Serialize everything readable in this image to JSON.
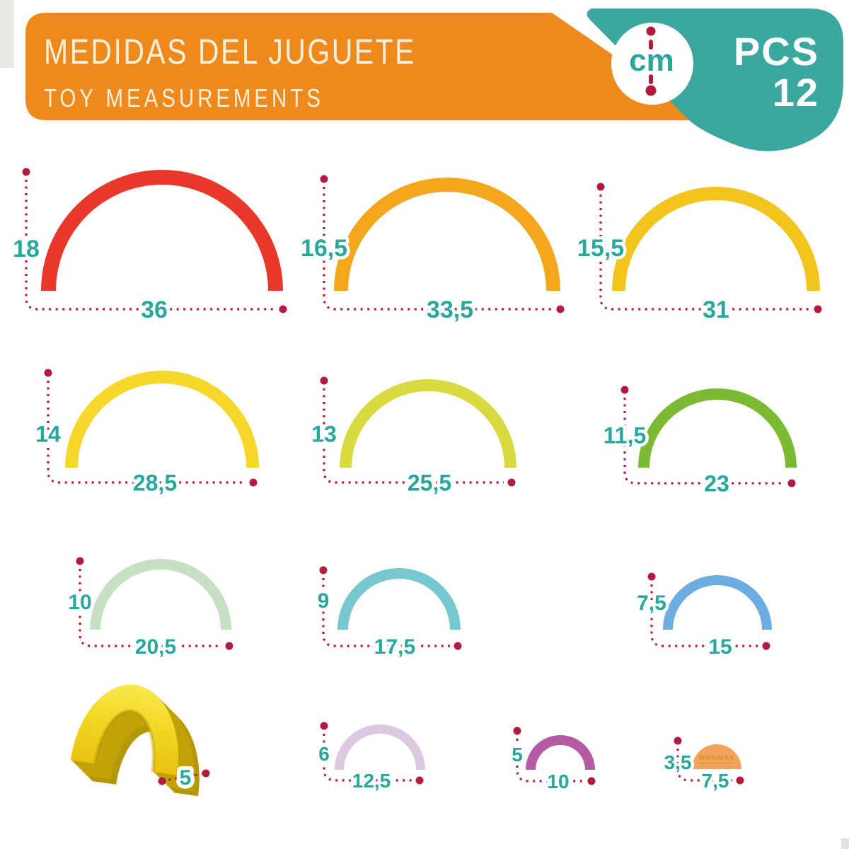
{
  "header": {
    "title_es": "MEDIDAS DEL JUGUETE",
    "title_en": "TOY MEASUREMENTS",
    "unit_badge": "cm",
    "pcs_label": "PCS",
    "pcs_value": "12",
    "banner_color": "#EE8A1D",
    "ribbon_color": "#3BA79E",
    "title_color": "#F6EFDA"
  },
  "dimensions_style": {
    "line_color": "#B01C3C",
    "label_color": "#28A79D"
  },
  "brand_mark": "WOOMAX",
  "pieces": [
    {
      "name": "arch-1",
      "shape": "arch",
      "color": "#E7382B",
      "height_cm": "18",
      "width_cm": "36"
    },
    {
      "name": "arch-2",
      "shape": "arch",
      "color": "#F3A71C",
      "height_cm": "16,5",
      "width_cm": "33,5"
    },
    {
      "name": "arch-3",
      "shape": "arch",
      "color": "#F4C41E",
      "height_cm": "15,5",
      "width_cm": "31"
    },
    {
      "name": "arch-4",
      "shape": "arch",
      "color": "#F7D72A",
      "height_cm": "14",
      "width_cm": "28,5"
    },
    {
      "name": "arch-5",
      "shape": "arch",
      "color": "#D8DA40",
      "height_cm": "13",
      "width_cm": "25,5"
    },
    {
      "name": "arch-6",
      "shape": "arch",
      "color": "#7CBA33",
      "height_cm": "11,5",
      "width_cm": "23"
    },
    {
      "name": "arch-7",
      "shape": "arch",
      "color": "#C7E0C3",
      "height_cm": "10",
      "width_cm": "20,5"
    },
    {
      "name": "arch-8",
      "shape": "arch",
      "color": "#77C7CF",
      "height_cm": "9",
      "width_cm": "17,5"
    },
    {
      "name": "arch-9",
      "shape": "arch",
      "color": "#6CACE0",
      "height_cm": "7,5",
      "width_cm": "15"
    },
    {
      "name": "arch-10",
      "shape": "arch",
      "color": "#DCC9E1",
      "height_cm": "6",
      "width_cm": "12,5"
    },
    {
      "name": "arch-11",
      "shape": "arch",
      "color": "#B45BA4",
      "height_cm": "5",
      "width_cm": "10"
    },
    {
      "name": "arch-12",
      "shape": "half-disc",
      "color": "#F2A45D",
      "height_cm": "3,5",
      "width_cm": "7,5",
      "brand": "WOOMAX"
    },
    {
      "name": "arch-3d",
      "shape": "arch-3d",
      "color": "#EFCE14",
      "depth_cm": "5"
    }
  ]
}
